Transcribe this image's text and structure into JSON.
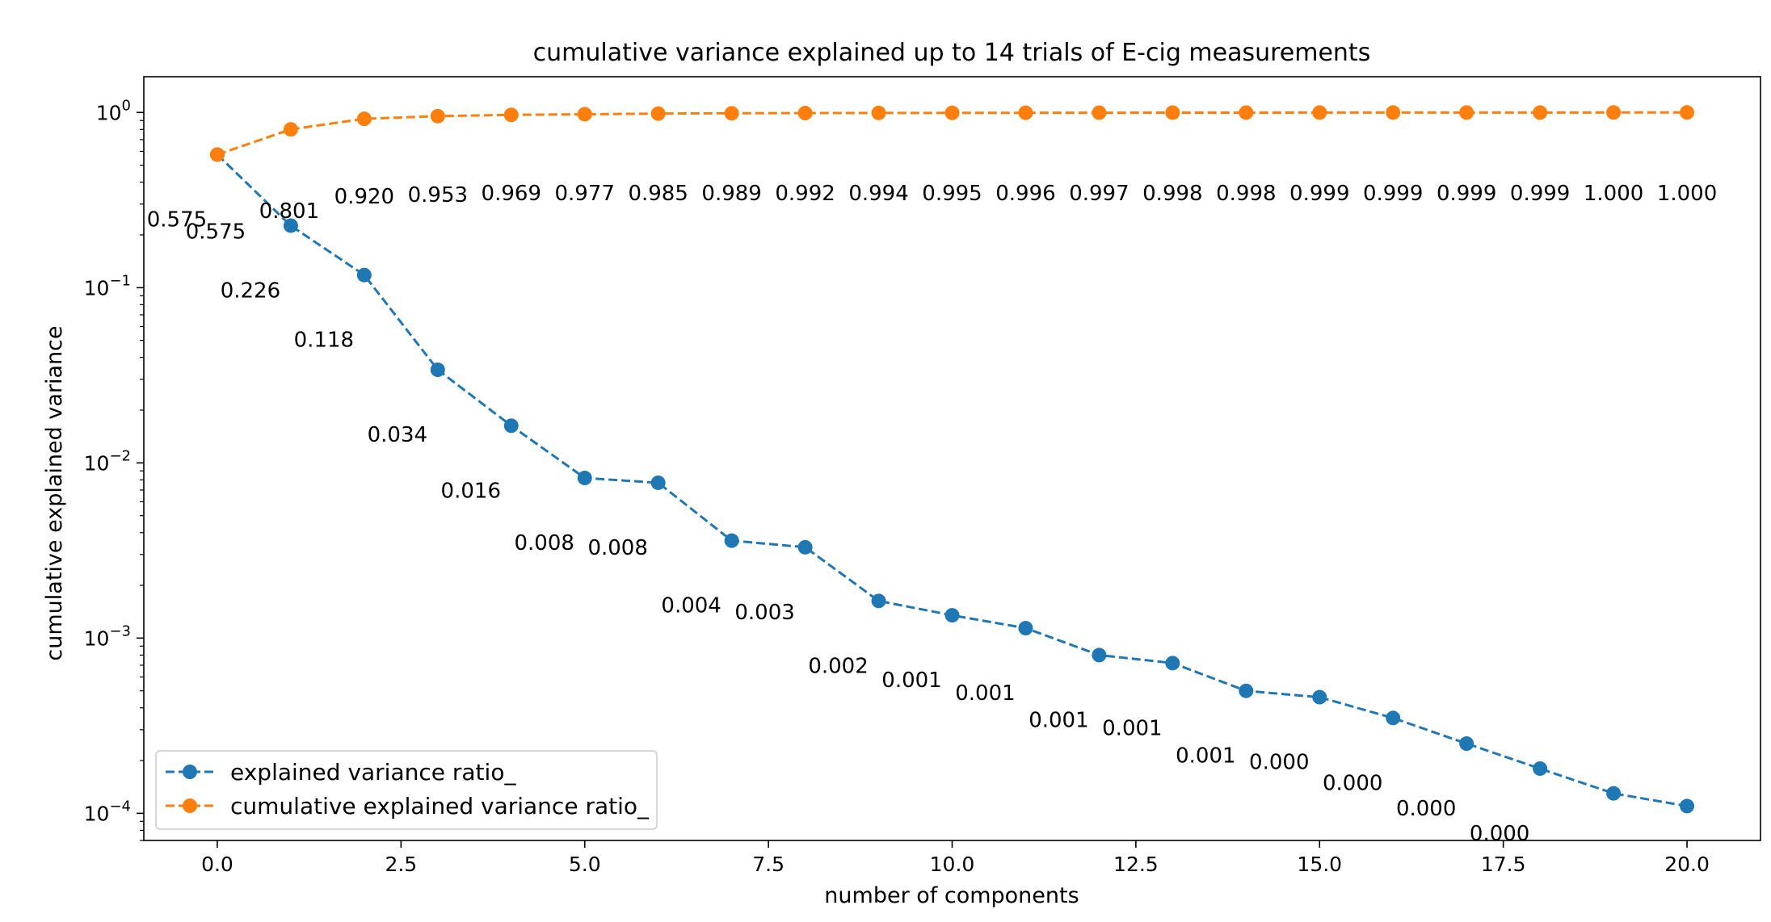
{
  "chart_data": {
    "type": "line",
    "title": "cumulative variance explained up to 14 trials of E-cig measurements",
    "xlabel": "number of components",
    "ylabel": "cumulative explained variance",
    "yscale": "log",
    "xlim": [
      -1.0,
      21.0
    ],
    "ylim": [
      7e-05,
      1.6
    ],
    "x_ticks": [
      "0.0",
      "2.5",
      "5.0",
      "7.5",
      "10.0",
      "12.5",
      "15.0",
      "17.5",
      "20.0"
    ],
    "x_tick_values": [
      0,
      2.5,
      5,
      7.5,
      10,
      12.5,
      15,
      17.5,
      20
    ],
    "y_ticks": [
      {
        "base": "10",
        "exp": "0",
        "value": 1
      },
      {
        "base": "10",
        "exp": "−1",
        "value": 0.1
      },
      {
        "base": "10",
        "exp": "−2",
        "value": 0.01
      },
      {
        "base": "10",
        "exp": "−3",
        "value": 0.001
      },
      {
        "base": "10",
        "exp": "−4",
        "value": 0.0001
      }
    ],
    "legend_position": "lower-left",
    "x": [
      0,
      1,
      2,
      3,
      4,
      5,
      6,
      7,
      8,
      9,
      10,
      11,
      12,
      13,
      14,
      15,
      16,
      17,
      18,
      19,
      20
    ],
    "series": [
      {
        "name": "explained variance ratio_",
        "color": "#1f77b4",
        "values": [
          0.575,
          0.226,
          0.118,
          0.034,
          0.0163,
          0.0082,
          0.0077,
          0.0036,
          0.0033,
          0.00163,
          0.00135,
          0.00114,
          0.0008,
          0.00072,
          0.0005,
          0.00046,
          0.00035,
          0.00025,
          0.00018,
          0.00013,
          0.00011
        ],
        "labels": [
          "0.575",
          "0.226",
          "0.118",
          "0.034",
          "0.016",
          "0.008",
          "0.008",
          "0.004",
          "0.003",
          "0.002",
          "0.001",
          "0.001",
          "0.001",
          "0.001",
          "0.001",
          "0.000",
          "0.000",
          "0.000",
          "0.000",
          "",
          ""
        ]
      },
      {
        "name": "cumulative explained variance ratio_",
        "color": "#ff7f0e",
        "values": [
          0.575,
          0.801,
          0.92,
          0.953,
          0.969,
          0.977,
          0.985,
          0.989,
          0.992,
          0.994,
          0.995,
          0.996,
          0.997,
          0.998,
          0.998,
          0.999,
          0.999,
          0.999,
          0.999,
          1.0,
          1.0
        ],
        "labels": [
          "0.575",
          "0.801",
          "0.920",
          "0.953",
          "0.969",
          "0.977",
          "0.985",
          "0.989",
          "0.992",
          "0.994",
          "0.995",
          "0.996",
          "0.997",
          "0.998",
          "0.998",
          "0.999",
          "0.999",
          "0.999",
          "0.999",
          "1.000",
          "1.000"
        ]
      }
    ]
  }
}
